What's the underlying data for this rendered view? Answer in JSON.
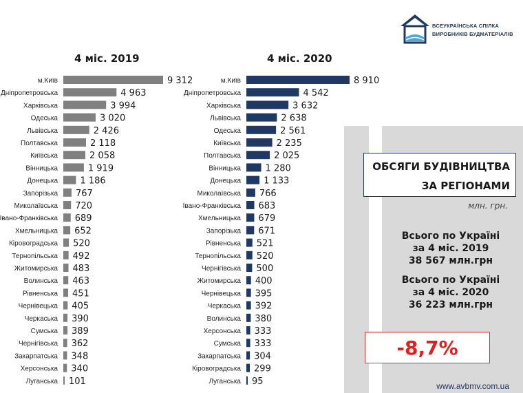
{
  "brand": {
    "logo_line1": "ВСЕУКРАЇНСЬКА СПІЛКА",
    "logo_line2": "ВИРОБНИКІВ БУДМАТЕРІАЛІВ",
    "website": "www.avbmv.com.ua",
    "color": "#1f3864"
  },
  "info": {
    "title_line1": "ОБСЯГИ БУДІВНИЦТВА",
    "title_line2": "ЗА РЕГІОНАМИ",
    "unit": "млн. грн.",
    "total_2019_l1": "Всього по Україні",
    "total_2019_l2": "за 4 міс. 2019",
    "total_2019_l3": "38 567 млн.грн",
    "total_2020_l1": "Всього по Україні",
    "total_2020_l2": "за 4 міс. 2020",
    "total_2020_l3": "36 223 млн.грн",
    "change": "-8,7%"
  },
  "chart_data": [
    {
      "type": "bar",
      "orientation": "horizontal",
      "title": "4 міс. 2019",
      "color": "#808080",
      "categories": [
        "м.Київ",
        "Дніпропетровська",
        "Харківська",
        "Одеська",
        "Львівська",
        "Полтавська",
        "Київська",
        "Вінницька",
        "Донецька",
        "Запорізька",
        "Миколаївська",
        "Івано-Франківська",
        "Хмельницька",
        "Кіровоградська",
        "Тернопільська",
        "Житомирська",
        "Волинська",
        "Рівненська",
        "Чернівецька",
        "Черкаська",
        "Сумська",
        "Чернігівська",
        "Закарпатська",
        "Херсонська",
        "Луганська"
      ],
      "values": [
        9312,
        4963,
        3994,
        3020,
        2426,
        2118,
        2058,
        1919,
        1186,
        767,
        720,
        689,
        652,
        520,
        492,
        483,
        463,
        451,
        405,
        390,
        389,
        362,
        348,
        340,
        101
      ],
      "labels": [
        "9 312",
        "4 963",
        "3 994",
        "3 020",
        "2 426",
        "2 118",
        "2 058",
        "1 919",
        "1 186",
        "767",
        "720",
        "689",
        "652",
        "520",
        "492",
        "483",
        "463",
        "451",
        "405",
        "390",
        "389",
        "362",
        "348",
        "340",
        "101"
      ]
    },
    {
      "type": "bar",
      "orientation": "horizontal",
      "title": "4 міс. 2020",
      "color": "#1f3864",
      "categories": [
        "м.Київ",
        "Дніпропетровська",
        "Харківська",
        "Львівська",
        "Одеська",
        "Київська",
        "Полтавська",
        "Вінницька",
        "Донецька",
        "Миколаївська",
        "Івано-Франківська",
        "Хмельницька",
        "Запорізька",
        "Рівненська",
        "Тернопільська",
        "Чернігівська",
        "Житомирська",
        "Чернівецька",
        "Черкаська",
        "Волинська",
        "Херсонська",
        "Сумська",
        "Закарпатська",
        "Кіровоградська",
        "Луганська"
      ],
      "values": [
        8910,
        4542,
        3632,
        2638,
        2561,
        2235,
        2025,
        1280,
        1133,
        766,
        683,
        679,
        671,
        521,
        520,
        500,
        400,
        395,
        392,
        380,
        333,
        333,
        304,
        299,
        95
      ],
      "labels": [
        "8 910",
        "4 542",
        "3 632",
        "2 638",
        "2 561",
        "2 235",
        "2 025",
        "1 280",
        "1 133",
        "766",
        "683",
        "679",
        "671",
        "521",
        "520",
        "500",
        "400",
        "395",
        "392",
        "380",
        "333",
        "333",
        "304",
        "299",
        "95"
      ]
    }
  ]
}
